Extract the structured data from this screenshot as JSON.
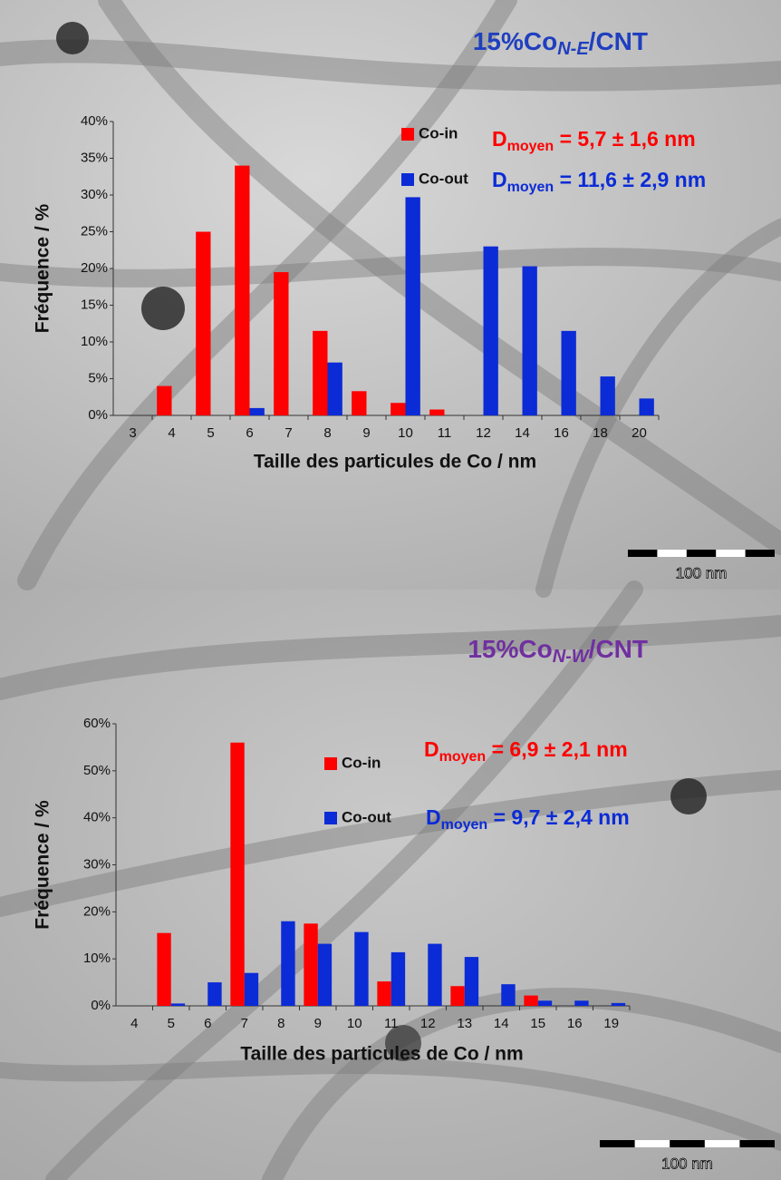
{
  "chart_data": [
    {
      "type": "bar",
      "title_parts": [
        "15%Co",
        "N-E",
        "/CNT"
      ],
      "title_color": "#1f3fbf",
      "xlabel": "Taille des particules de Co / nm",
      "ylabel": "Fréquence / %",
      "categories": [
        "3",
        "4",
        "5",
        "6",
        "7",
        "8",
        "9",
        "10",
        "11",
        "12",
        "14",
        "16",
        "18",
        "20"
      ],
      "series": [
        {
          "name": "Co-in",
          "color": "#ff0000",
          "values": [
            null,
            4,
            25,
            34,
            19.5,
            11.5,
            3.3,
            1.7,
            0.8,
            null,
            null,
            null,
            null,
            null
          ]
        },
        {
          "name": "Co-out",
          "color": "#0b2bd6",
          "values": [
            null,
            null,
            null,
            1,
            null,
            7.2,
            null,
            29.7,
            null,
            23,
            20.3,
            11.5,
            5.3,
            2.3
          ]
        }
      ],
      "ylim": [
        0,
        40
      ],
      "yticks": [
        {
          "value": 0,
          "label": "0%"
        },
        {
          "value": 5,
          "label": "5%"
        },
        {
          "value": 10,
          "label": "10%"
        },
        {
          "value": 15,
          "label": "15%"
        },
        {
          "value": 20,
          "label": "20%"
        },
        {
          "value": 25,
          "label": "25%"
        },
        {
          "value": 30,
          "label": "30%"
        },
        {
          "value": 35,
          "label": "35%"
        },
        {
          "value": 40,
          "label": "40%"
        }
      ],
      "annotations": [
        {
          "parts": [
            "D",
            "moyen",
            " = 5,7 ± 1,6 nm"
          ],
          "color": "#ff0000"
        },
        {
          "parts": [
            "D",
            "moyen",
            " =  11,6 ± 2,9 nm"
          ],
          "color": "#0b2bd6"
        }
      ],
      "scale_bar": "100 nm"
    },
    {
      "type": "bar",
      "title_parts": [
        "15%Co",
        "N-W",
        "/CNT"
      ],
      "title_color": "#7030a0",
      "xlabel": "Taille des particules de Co / nm",
      "ylabel": "Fréquence / %",
      "categories": [
        "4",
        "5",
        "6",
        "7",
        "8",
        "9",
        "10",
        "11",
        "12",
        "13",
        "14",
        "15",
        "16",
        "19"
      ],
      "series": [
        {
          "name": "Co-in",
          "color": "#ff0000",
          "values": [
            null,
            15.5,
            null,
            56,
            null,
            17.5,
            null,
            5.2,
            null,
            4.2,
            null,
            2.2,
            null,
            null
          ]
        },
        {
          "name": "Co-out",
          "color": "#0b2bd6",
          "values": [
            null,
            0.5,
            5,
            7,
            18,
            13.2,
            15.7,
            11.4,
            13.2,
            10.4,
            4.6,
            1.1,
            1.1,
            0.6
          ]
        }
      ],
      "ylim": [
        0,
        60
      ],
      "yticks": [
        {
          "value": 0,
          "label": "0%"
        },
        {
          "value": 10,
          "label": "10%"
        },
        {
          "value": 20,
          "label": "20%"
        },
        {
          "value": 30,
          "label": "30%"
        },
        {
          "value": 40,
          "label": "40%"
        },
        {
          "value": 50,
          "label": "50%"
        },
        {
          "value": 60,
          "label": "60%"
        }
      ],
      "annotations": [
        {
          "parts": [
            "D",
            "moyen",
            " = 6,9 ± 2,1 nm"
          ],
          "color": "#ff0000"
        },
        {
          "parts": [
            "D",
            "moyen",
            " =  9,7 ± 2,4 nm"
          ],
          "color": "#0b2bd6"
        }
      ],
      "scale_bar": "100 nm"
    }
  ]
}
